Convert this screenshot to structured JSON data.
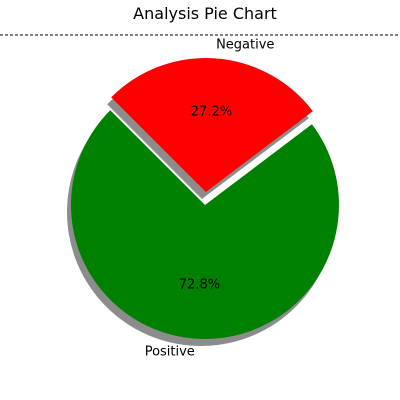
{
  "chart_data": {
    "type": "pie",
    "title": "Analysis Pie Chart",
    "categories": [
      "Positive",
      "Negative"
    ],
    "values": [
      72.8,
      27.2
    ],
    "value_labels": [
      "72.8%",
      "27.2%"
    ],
    "colors": [
      "#008000",
      "#ff0000"
    ],
    "exploded": [
      "Negative"
    ],
    "shadow": true,
    "title_divider": "dashed"
  }
}
